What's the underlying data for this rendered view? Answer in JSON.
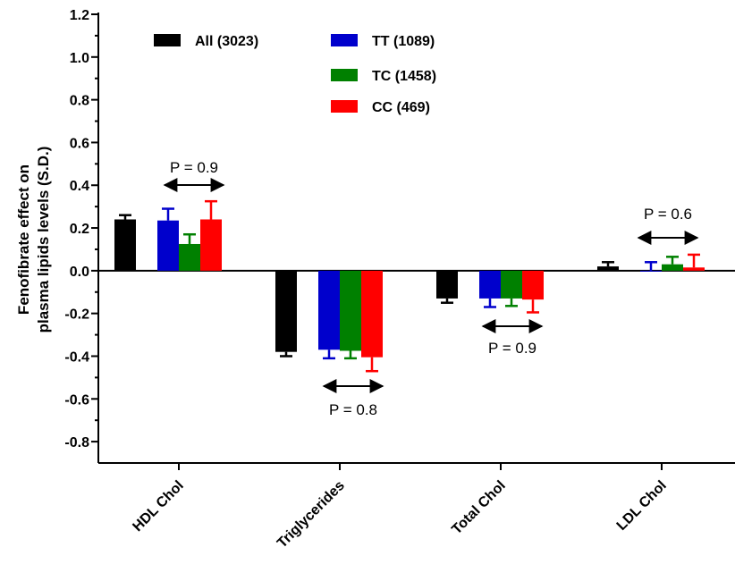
{
  "chart_data": {
    "type": "bar",
    "ylabel": [
      "Fenofibrate effect on",
      "plasma lipids levels (S.D.)"
    ],
    "ylim": [
      -0.9,
      1.2
    ],
    "yticks": [
      -0.8,
      -0.6,
      -0.4,
      -0.2,
      0.0,
      0.2,
      0.4,
      0.6,
      0.8,
      1.0,
      1.2
    ],
    "ytick_labels": [
      "-0.8",
      "-0.6",
      "-0.4",
      "-0.2",
      "0.0",
      "0.2",
      "0.4",
      "0.6",
      "0.8",
      "1.0",
      "1.2"
    ],
    "categories": [
      "HDL Chol",
      "Triglycerides",
      "Total Chol",
      "LDL Chol"
    ],
    "series": [
      {
        "name": "All (3023)",
        "color": "#000000",
        "values": [
          0.24,
          -0.38,
          -0.13,
          0.02
        ],
        "errors": [
          0.02,
          0.02,
          0.02,
          0.02
        ]
      },
      {
        "name": "TT (1089)",
        "color": "#0000cc",
        "values": [
          0.235,
          -0.37,
          -0.13,
          0.0
        ],
        "errors": [
          0.055,
          0.04,
          0.04,
          0.04
        ]
      },
      {
        "name": "TC (1458)",
        "color": "#008000",
        "values": [
          0.125,
          -0.375,
          -0.13,
          0.03
        ],
        "errors": [
          0.045,
          0.035,
          0.035,
          0.035
        ]
      },
      {
        "name": "CC (469)",
        "color": "#ff0000",
        "values": [
          0.24,
          -0.405,
          -0.135,
          0.015
        ],
        "errors": [
          0.085,
          0.065,
          0.06,
          0.06
        ]
      }
    ],
    "pvalues": [
      "P = 0.9",
      "P = 0.8",
      "P = 0.9",
      "P = 0.6"
    ],
    "pvalue_placement": [
      "above",
      "below",
      "below",
      "above"
    ],
    "legend_position": "top-left, two columns",
    "grid": false
  }
}
